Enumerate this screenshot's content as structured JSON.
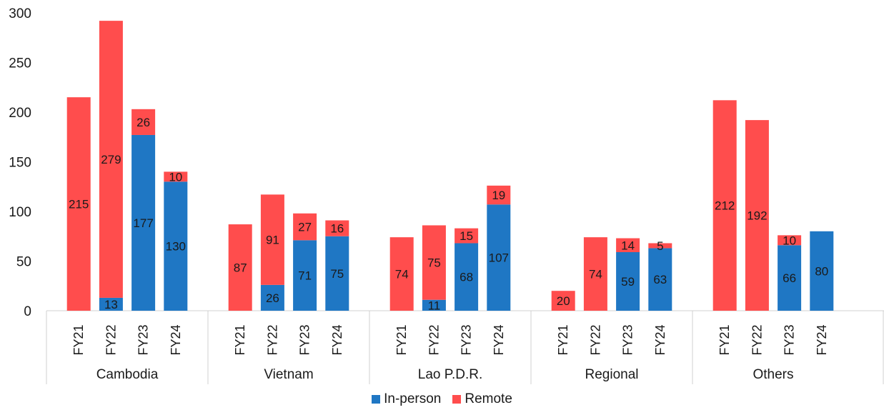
{
  "chart_data": {
    "type": "bar",
    "stacked": true,
    "title": "",
    "xlabel": "",
    "ylabel": "",
    "ylim": [
      0,
      300
    ],
    "yticks": [
      0,
      50,
      100,
      150,
      200,
      250,
      300
    ],
    "legend_position": "bottom",
    "groups": [
      {
        "name": "Cambodia",
        "bars": [
          {
            "label": "FY21",
            "in_person": 0,
            "remote": 215
          },
          {
            "label": "FY22",
            "in_person": 13,
            "remote": 279
          },
          {
            "label": "FY23",
            "in_person": 177,
            "remote": 26
          },
          {
            "label": "FY24",
            "in_person": 130,
            "remote": 10
          }
        ]
      },
      {
        "name": "Vietnam",
        "bars": [
          {
            "label": "FY21",
            "in_person": 0,
            "remote": 87
          },
          {
            "label": "FY22",
            "in_person": 26,
            "remote": 91
          },
          {
            "label": "FY23",
            "in_person": 71,
            "remote": 27
          },
          {
            "label": "FY24",
            "in_person": 75,
            "remote": 16
          }
        ]
      },
      {
        "name": "Lao P.D.R.",
        "bars": [
          {
            "label": "FY21",
            "in_person": 0,
            "remote": 74
          },
          {
            "label": "FY22",
            "in_person": 11,
            "remote": 75
          },
          {
            "label": "FY23",
            "in_person": 68,
            "remote": 15
          },
          {
            "label": "FY24",
            "in_person": 107,
            "remote": 19
          }
        ]
      },
      {
        "name": "Regional",
        "bars": [
          {
            "label": "FY21",
            "in_person": 0,
            "remote": 20
          },
          {
            "label": "FY22",
            "in_person": 0,
            "remote": 74
          },
          {
            "label": "FY23",
            "in_person": 59,
            "remote": 14
          },
          {
            "label": "FY24",
            "in_person": 63,
            "remote": 5
          }
        ]
      },
      {
        "name": "Others",
        "bars": [
          {
            "label": "FY21",
            "in_person": 0,
            "remote": 212
          },
          {
            "label": "FY22",
            "in_person": 0,
            "remote": 192
          },
          {
            "label": "FY23",
            "in_person": 66,
            "remote": 10
          },
          {
            "label": "FY24",
            "in_person": 80,
            "remote": 0
          }
        ]
      }
    ],
    "series": [
      {
        "key": "in_person",
        "name": "In-person",
        "color": "#1f77c4"
      },
      {
        "key": "remote",
        "name": "Remote",
        "color": "#ff4d4d"
      }
    ]
  },
  "legend": {
    "in_person_label": "In-person",
    "remote_label": "Remote"
  }
}
